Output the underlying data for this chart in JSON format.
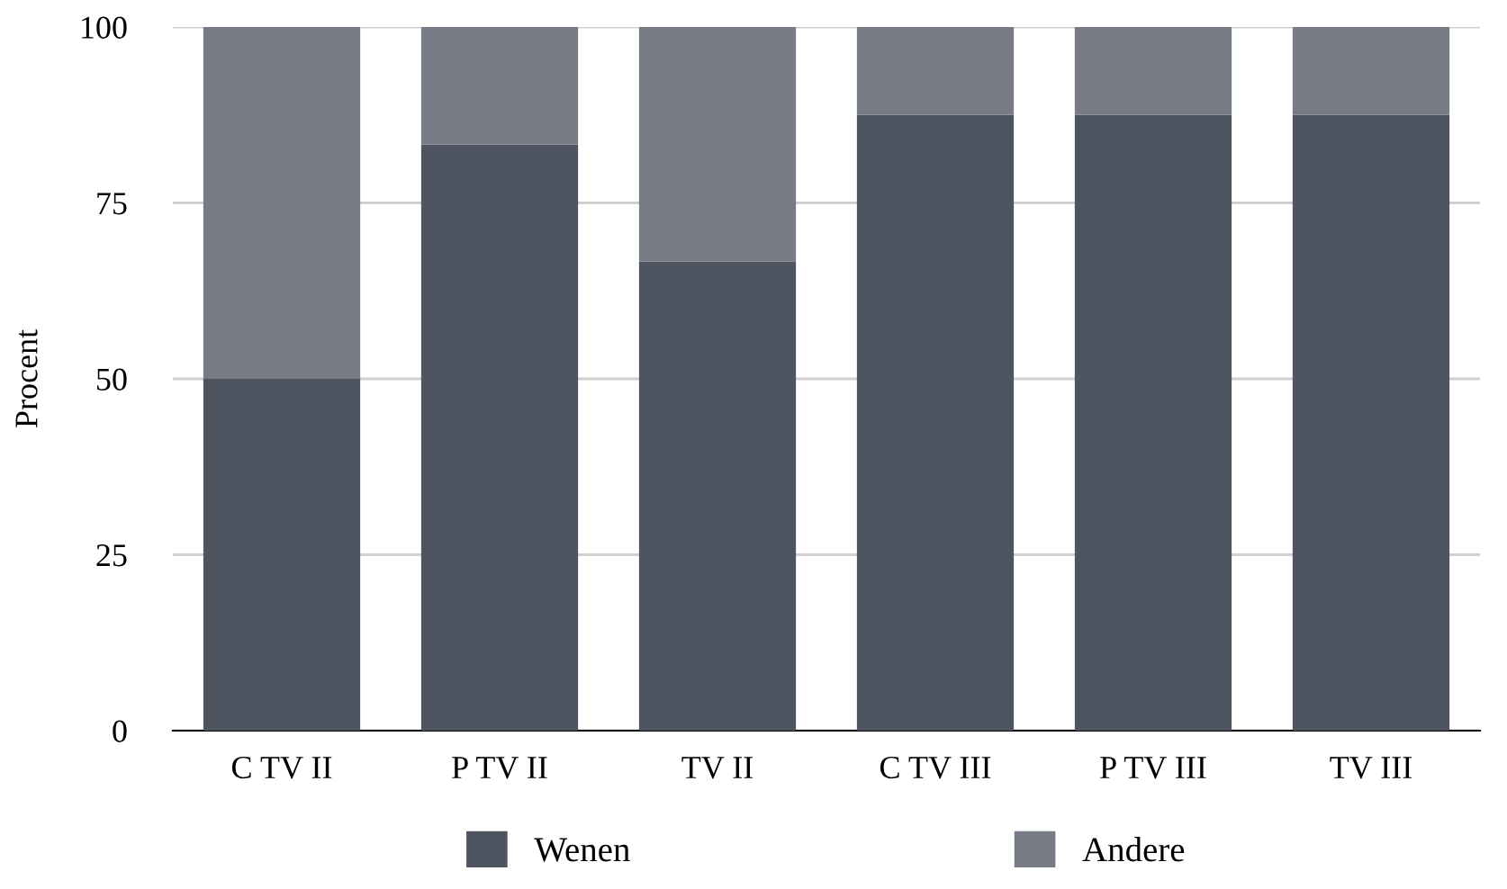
{
  "chart_data": {
    "type": "bar",
    "stacked": true,
    "ylabel": "Procent",
    "categories": [
      "C TV II",
      "P TV II",
      "TV II",
      "C TV III",
      "P TV III",
      "TV III"
    ],
    "series": [
      {
        "name": "Wenen",
        "color": "#4e5460",
        "values": [
          50,
          83.3,
          66.7,
          87.5,
          87.5,
          87.5
        ]
      },
      {
        "name": "Andere",
        "color": "#767b86",
        "values": [
          50,
          16.7,
          33.3,
          12.5,
          12.5,
          12.5
        ]
      }
    ],
    "ylim": [
      0,
      100
    ],
    "yticks": [
      0,
      25,
      50,
      75,
      100
    ],
    "grid": "y",
    "legend": "bottom"
  }
}
